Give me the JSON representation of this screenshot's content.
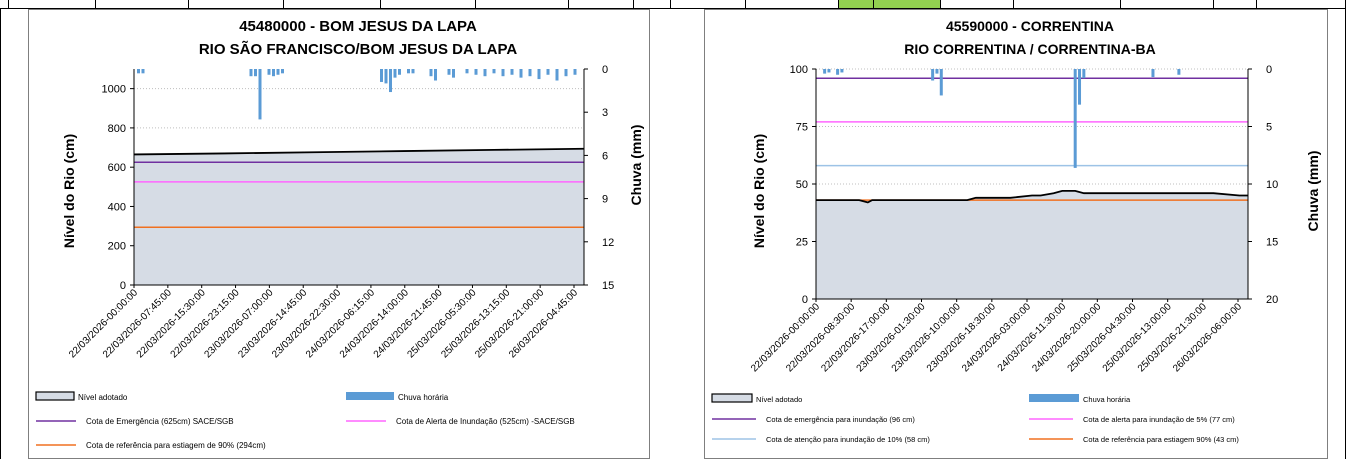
{
  "chart_data": [
    {
      "type": "area",
      "title": "45480000 - BOM JESUS DA LAPA",
      "subtitle": "RIO SÃO FRANCISCO/BOM JESUS DA LAPA",
      "ylabel": "Nível do Rio (cm)",
      "y2label": "Chuva (mm)",
      "ylim": [
        0,
        1100
      ],
      "yticks": [
        0,
        200,
        400,
        600,
        800,
        1000
      ],
      "y2lim": [
        0,
        15
      ],
      "y2ticks": [
        0,
        3,
        6,
        9,
        12,
        15
      ],
      "y2_inverted": true,
      "grid": "horizontal dotted",
      "xticks": [
        "22/03/2026-00:00:00",
        "22/03/2026-07:45:00",
        "22/03/2026-15:30:00",
        "22/03/2026-23:15:00",
        "23/03/2026-07:00:00",
        "23/03/2026-14:45:00",
        "23/03/2026-22:30:00",
        "24/03/2026-06:15:00",
        "24/03/2026-14:00:00",
        "24/03/2026-21:45:00",
        "25/03/2026-05:30:00",
        "25/03/2026-13:15:00",
        "25/03/2026-21:00:00",
        "26/03/2026-04:45:00"
      ],
      "level_series": {
        "name": "Nível adotado",
        "x": [
          0,
          20,
          40,
          60,
          80,
          100
        ],
        "values": [
          665,
          670,
          676,
          682,
          688,
          694
        ]
      },
      "reference_lines": [
        {
          "name": "Cota de Emergência   (625cm) SACE/SGB",
          "value": 625,
          "color": "#7030a0"
        },
        {
          "name": "Cota de Alerta  de Inundação (525cm) -SACE/SGB",
          "value": 525,
          "color": "#ff66ff"
        },
        {
          "name": "Cota de referência para  estiagem de 90% (294cm)",
          "value": 294,
          "color": "#f07020"
        }
      ],
      "rain_series": {
        "name": "Chuva horária",
        "color": "#5b9bd5",
        "x": [
          1,
          2,
          26,
          27,
          28,
          30,
          31,
          32,
          33,
          55,
          56,
          57,
          58,
          59,
          61,
          62,
          66,
          67,
          70,
          71,
          74,
          76,
          78,
          80,
          82,
          84,
          86,
          88,
          90,
          92,
          94,
          96,
          98
        ],
        "values": [
          0.3,
          0.3,
          0.5,
          0.5,
          3.5,
          0.4,
          0.5,
          0.4,
          0.3,
          0.9,
          1.0,
          1.6,
          0.6,
          0.4,
          0.3,
          0.3,
          0.5,
          0.8,
          0.4,
          0.6,
          0.3,
          0.4,
          0.5,
          0.3,
          0.5,
          0.4,
          0.6,
          0.5,
          0.7,
          0.4,
          0.8,
          0.5,
          0.4
        ]
      },
      "legend": [
        {
          "label": "Nível adotado",
          "kind": "box"
        },
        {
          "label": "Chuva horária",
          "kind": "bar",
          "color": "#5b9bd5"
        },
        {
          "label": "Cota de Emergência   (625cm) SACE/SGB",
          "kind": "line",
          "color": "#7030a0"
        },
        {
          "label": "Cota de Alerta  de Inundação (525cm) -SACE/SGB",
          "kind": "line",
          "color": "#ff66ff"
        },
        {
          "label": "Cota de referência para  estiagem de 90% (294cm)",
          "kind": "line",
          "color": "#f07020"
        }
      ]
    },
    {
      "type": "area",
      "title": "45590000 - CORRENTINA",
      "subtitle": "RIO CORRENTINA / CORRENTINA-BA",
      "ylabel": "Nível do Rio (cm)",
      "y2label": "Chuva (mm)",
      "ylim": [
        0,
        100
      ],
      "yticks": [
        0,
        25,
        50,
        75,
        100
      ],
      "y2lim": [
        0,
        20
      ],
      "y2ticks": [
        0,
        5,
        10,
        15,
        20
      ],
      "y2_inverted": true,
      "grid": "horizontal dotted",
      "xticks": [
        "22/03/2026-00:00:00",
        "22/03/2026-08:30:00",
        "22/03/2026-17:00:00",
        "23/03/2026-01:30:00",
        "23/03/2026-10:00:00",
        "23/03/2026-18:30:00",
        "24/03/2026-03:00:00",
        "24/03/2026-11:30:00",
        "24/03/2026-20:00:00",
        "25/03/2026-04:30:00",
        "25/03/2026-13:00:00",
        "25/03/2026-21:30:00",
        "26/03/2026-06:00:00"
      ],
      "level_series": {
        "name": "Nível adotado",
        "x": [
          0,
          10,
          12,
          13,
          15,
          17,
          20,
          30,
          35,
          37,
          40,
          45,
          50,
          52,
          55,
          57,
          60,
          62,
          64,
          66,
          70,
          74,
          78,
          84,
          92,
          98,
          100
        ],
        "values": [
          43,
          43,
          42,
          43,
          43,
          43,
          43,
          43,
          43,
          44,
          44,
          44,
          45,
          45,
          46,
          47,
          47,
          46,
          46,
          46,
          46,
          46,
          46,
          46,
          46,
          45,
          45
        ]
      },
      "reference_lines": [
        {
          "name": "Cota de emergência para inundação (96 cm)",
          "value": 96,
          "color": "#7030a0"
        },
        {
          "name": "Cota de alerta para inundação de 5% (77 cm)",
          "value": 77,
          "color": "#ff66ff"
        },
        {
          "name": "Cota de atenção para inundação de 10% (58 cm)",
          "value": 58,
          "color": "#9dc3e6"
        },
        {
          "name": "Cota de referência para estiagem 90% (43 cm)",
          "value": 43,
          "color": "#f07020"
        }
      ],
      "rain_series": {
        "name": "Chuva horária",
        "color": "#5b9bd5",
        "x": [
          2,
          3,
          5,
          6,
          27,
          28,
          29,
          60,
          61,
          62,
          78,
          84
        ],
        "values": [
          0.4,
          0.3,
          0.5,
          0.3,
          1.0,
          0.4,
          2.3,
          8.6,
          3.1,
          0.8,
          0.7,
          0.5
        ],
        "values_note": ""
      },
      "legend": [
        {
          "label": "Nível adotado",
          "kind": "box"
        },
        {
          "label": "Chuva horária",
          "kind": "bar",
          "color": "#5b9bd5"
        },
        {
          "label": "Cota de emergência para inundação (96 cm)",
          "kind": "line",
          "color": "#7030a0"
        },
        {
          "label": "Cota de alerta para inundação de 5% (77 cm)",
          "kind": "line",
          "color": "#ff66ff"
        },
        {
          "label": "Cota de atenção para inundação de 10% (58 cm)",
          "kind": "line",
          "color": "#9dc3e6"
        },
        {
          "label": "Cota de referência para estiagem 90% (43 cm)",
          "kind": "line",
          "color": "#f07020"
        }
      ]
    }
  ]
}
